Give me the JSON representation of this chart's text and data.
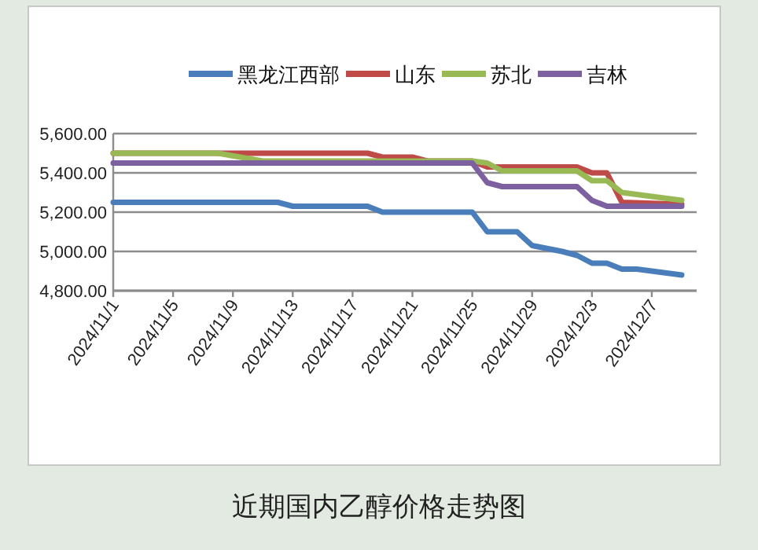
{
  "chart_data": {
    "type": "line",
    "title": "近期国内乙醇价格走势图",
    "legend": "top",
    "grid": "y",
    "marker": "none",
    "line_style": "solid",
    "xlim": [
      "2024-11-01",
      "2024-12-10"
    ],
    "xticks": [
      {
        "value": "2024-11-01",
        "label": "2024/11/1"
      },
      {
        "value": "2024-11-05",
        "label": "2024/11/5"
      },
      {
        "value": "2024-11-09",
        "label": "2024/11/9"
      },
      {
        "value": "2024-11-13",
        "label": "2024/11/13"
      },
      {
        "value": "2024-11-17",
        "label": "2024/11/17"
      },
      {
        "value": "2024-11-21",
        "label": "2024/11/21"
      },
      {
        "value": "2024-11-25",
        "label": "2024/11/25"
      },
      {
        "value": "2024-11-29",
        "label": "2024/11/29"
      },
      {
        "value": "2024-12-03",
        "label": "2024/12/3"
      },
      {
        "value": "2024-12-07",
        "label": "2024/12/7"
      }
    ],
    "ylim": [
      4800,
      5600
    ],
    "yticks": [
      {
        "value": 4800,
        "label": "4,800.00"
      },
      {
        "value": 5000,
        "label": "5,000.00"
      },
      {
        "value": 5200,
        "label": "5,200.00"
      },
      {
        "value": 5400,
        "label": "5,400.00"
      },
      {
        "value": 5600,
        "label": "5,600.00"
      }
    ],
    "series": [
      {
        "name": "黑龙江西部",
        "color": "#4a7ebb",
        "x": [
          "2024-11-01",
          "2024-11-12",
          "2024-11-13",
          "2024-11-18",
          "2024-11-19",
          "2024-11-25",
          "2024-11-26",
          "2024-11-28",
          "2024-11-29",
          "2024-12-01",
          "2024-12-02",
          "2024-12-03",
          "2024-12-04",
          "2024-12-05",
          "2024-12-06",
          "2024-12-09"
        ],
        "values": [
          5250,
          5250,
          5230,
          5230,
          5200,
          5200,
          5100,
          5100,
          5030,
          5000,
          4980,
          4940,
          4940,
          4910,
          4910,
          4880
        ]
      },
      {
        "name": "山东",
        "color": "#be4b48",
        "x": [
          "2024-11-01",
          "2024-11-18",
          "2024-11-19",
          "2024-11-21",
          "2024-11-22",
          "2024-11-25",
          "2024-11-26",
          "2024-12-02",
          "2024-12-03",
          "2024-12-04",
          "2024-12-05",
          "2024-12-09"
        ],
        "values": [
          5500,
          5500,
          5480,
          5480,
          5460,
          5460,
          5430,
          5430,
          5400,
          5400,
          5250,
          5240
        ]
      },
      {
        "name": "苏北",
        "color": "#98b954",
        "x": [
          "2024-11-01",
          "2024-11-08",
          "2024-11-11",
          "2024-11-25",
          "2024-11-26",
          "2024-11-27",
          "2024-12-02",
          "2024-12-03",
          "2024-12-04",
          "2024-12-05",
          "2024-12-07",
          "2024-12-09"
        ],
        "values": [
          5500,
          5500,
          5460,
          5460,
          5450,
          5410,
          5410,
          5360,
          5360,
          5300,
          5280,
          5260
        ]
      },
      {
        "name": "吉林",
        "color": "#7d60a0",
        "x": [
          "2024-11-01",
          "2024-11-25",
          "2024-11-26",
          "2024-11-27",
          "2024-12-02",
          "2024-12-03",
          "2024-12-04",
          "2024-12-09"
        ],
        "values": [
          5450,
          5450,
          5350,
          5330,
          5330,
          5260,
          5230,
          5230
        ]
      }
    ]
  }
}
